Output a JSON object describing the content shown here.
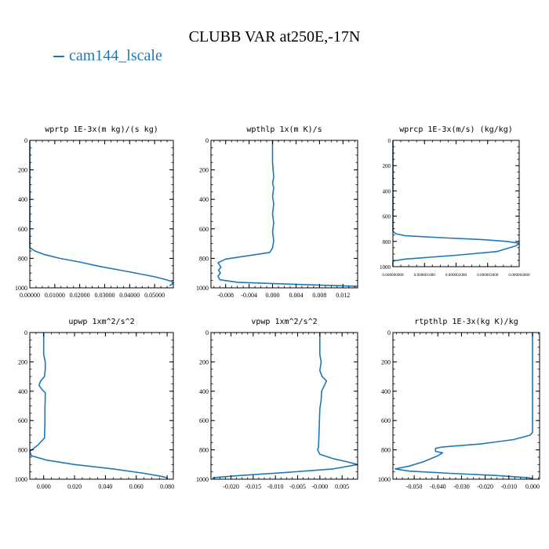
{
  "figure": {
    "title": "CLUBB VAR at250E,-17N",
    "legend_label": "cam144_lscale",
    "series_color": "#1f77b4"
  },
  "chart_data": [
    {
      "type": "line",
      "title": "wprtp  1E-3x(m kg)/(s kg)",
      "xlim": [
        0.0,
        0.0575
      ],
      "ylim": [
        1000,
        0
      ],
      "y_inverted": true,
      "xticks": [
        0.0,
        0.01,
        0.02,
        0.03,
        0.04,
        0.05
      ],
      "xtick_labels": [
        "0.00000",
        "0.01000",
        "0.02000",
        "0.03000",
        "0.04000",
        "0.05000"
      ],
      "yticks": [
        0,
        200,
        400,
        600,
        800,
        1000
      ],
      "ytick_labels": [
        "0",
        "200",
        "400",
        "600",
        "800",
        "1000"
      ],
      "series": [
        {
          "x": [
            0,
            0,
            0.002,
            0.006,
            0.012,
            0.02,
            0.028,
            0.036,
            0.044,
            0.05,
            0.054,
            0.0565,
            0.0575,
            0.057,
            0.056
          ],
          "y": [
            0,
            727,
            750,
            775,
            800,
            825,
            855,
            880,
            905,
            925,
            942,
            955,
            965,
            975,
            985
          ]
        }
      ]
    },
    {
      "type": "line",
      "title": "wpthlp  1x(m K)/s",
      "xlim": [
        -0.0105,
        0.0145
      ],
      "ylim": [
        1000,
        0
      ],
      "y_inverted": true,
      "xticks": [
        -0.008,
        -0.004,
        0.0,
        0.004,
        0.008,
        0.012
      ],
      "xtick_labels": [
        "-0.008",
        "-0.004",
        "0.000",
        "0.004",
        "0.008",
        "0.012"
      ],
      "yticks": [
        0,
        200,
        400,
        600,
        800,
        1000
      ],
      "ytick_labels": [
        "0",
        "200",
        "400",
        "600",
        "800",
        "1000"
      ],
      "series": [
        {
          "x": [
            0.0,
            0.0,
            0.0002,
            0.0,
            0.0002,
            0.0,
            0.0002,
            0.0,
            0.0002,
            0.0,
            0.0002,
            0.0,
            -0.0005,
            -0.008,
            -0.0093,
            -0.0088,
            -0.0092,
            -0.0089,
            -0.0093,
            -0.009,
            -0.006,
            0.003,
            0.0145
          ],
          "y": [
            0,
            150,
            250,
            290,
            320,
            380,
            430,
            500,
            560,
            620,
            680,
            730,
            760,
            805,
            830,
            860,
            880,
            900,
            920,
            945,
            962,
            975,
            990
          ]
        }
      ]
    },
    {
      "type": "line",
      "title": "wprcp  1E-3x(m/s) (kg/kg)",
      "xlim": [
        0.0,
        4e-06
      ],
      "ylim": [
        1000,
        0
      ],
      "y_inverted": true,
      "xticks": [
        0.0,
        1e-06,
        2e-06,
        3e-06,
        4e-06
      ],
      "xtick_labels": [
        "0.000000000",
        "0.000001000",
        "0.000002000",
        "0.000003000",
        "0.000004000"
      ],
      "yticks": [
        0,
        200,
        400,
        600,
        800,
        1000
      ],
      "ytick_labels": [
        "0",
        "200",
        "400",
        "600",
        "800",
        "1000"
      ],
      "series": [
        {
          "x": [
            0,
            0,
            1e-07,
            4e-07,
            1.5e-06,
            2.8e-06,
            3.6e-06,
            4e-06,
            3.9e-06,
            3.3e-06,
            2e-06,
            4e-07,
            0,
            0
          ],
          "y": [
            0,
            720,
            740,
            755,
            770,
            785,
            800,
            815,
            835,
            880,
            910,
            940,
            955,
            1000
          ]
        }
      ]
    },
    {
      "type": "line",
      "title": "upwp  1xm^2/s^2",
      "xlim": [
        -0.009,
        0.084
      ],
      "ylim": [
        1000,
        0
      ],
      "y_inverted": true,
      "xticks": [
        0.0,
        0.02,
        0.04,
        0.06,
        0.08
      ],
      "xtick_labels": [
        "0.000",
        "0.020",
        "0.040",
        "0.060",
        "0.080"
      ],
      "yticks": [
        0,
        200,
        400,
        600,
        800,
        1000
      ],
      "ytick_labels": [
        "0",
        "200",
        "400",
        "600",
        "800",
        "1000"
      ],
      "series": [
        {
          "x": [
            0.0,
            0.0,
            0.001,
            0.001,
            0.0005,
            -0.002,
            -0.003,
            -0.001,
            0.001,
            0.001,
            0.0008,
            0.0008,
            0.0005,
            -0.004,
            -0.009,
            -0.008,
            0.002,
            0.02,
            0.045,
            0.065,
            0.076,
            0.08,
            0.08
          ],
          "y": [
            0,
            150,
            200,
            250,
            300,
            330,
            360,
            390,
            410,
            450,
            520,
            600,
            720,
            770,
            810,
            840,
            870,
            900,
            930,
            960,
            980,
            990,
            1000
          ]
        }
      ]
    },
    {
      "type": "line",
      "title": "vpwp  1xm^2/s^2",
      "xlim": [
        -0.0245,
        0.0085
      ],
      "ylim": [
        1000,
        0
      ],
      "y_inverted": true,
      "xticks": [
        -0.02,
        -0.015,
        -0.01,
        -0.005,
        0.0,
        0.005
      ],
      "xtick_labels": [
        "-0.020",
        "-0.015",
        "-0.010",
        "-0.005",
        "-0.000",
        "0.005"
      ],
      "yticks": [
        0,
        200,
        400,
        600,
        800,
        1000
      ],
      "ytick_labels": [
        "0",
        "200",
        "400",
        "600",
        "800",
        "1000"
      ],
      "series": [
        {
          "x": [
            0.0,
            0.0,
            0.0003,
            0.0,
            0.0005,
            0.0015,
            0.0004,
            0.0003,
            0.0,
            -0.0001,
            -0.0002,
            -0.0003,
            -0.0005,
            0.0,
            0.003,
            0.006,
            0.0085,
            0.003,
            -0.008,
            -0.018,
            -0.024,
            -0.024
          ],
          "y": [
            0,
            150,
            200,
            260,
            300,
            330,
            400,
            460,
            520,
            600,
            700,
            780,
            800,
            830,
            860,
            880,
            900,
            930,
            955,
            975,
            990,
            1000
          ]
        }
      ]
    },
    {
      "type": "line",
      "title": "rtpthlp  1E-3x(kg K)/kg",
      "xlim": [
        -0.059,
        0.003
      ],
      "ylim": [
        1000,
        0
      ],
      "y_inverted": true,
      "xticks": [
        -0.05,
        -0.04,
        -0.03,
        -0.02,
        -0.01,
        0.0
      ],
      "xtick_labels": [
        "-0.050",
        "-0.040",
        "-0.030",
        "-0.020",
        "-0.010",
        "0.000"
      ],
      "yticks": [
        0,
        200,
        400,
        600,
        800,
        1000
      ],
      "ytick_labels": [
        "0",
        "200",
        "400",
        "600",
        "800",
        "1000"
      ],
      "series": [
        {
          "x": [
            0.0,
            0.0,
            -0.001,
            -0.008,
            -0.022,
            -0.038,
            -0.041,
            -0.041,
            -0.038,
            -0.04,
            -0.046,
            -0.052,
            -0.058,
            -0.052,
            -0.035,
            -0.015,
            -0.002,
            0.0,
            0.0
          ],
          "y": [
            0,
            680,
            700,
            730,
            760,
            780,
            790,
            810,
            820,
            840,
            880,
            910,
            930,
            945,
            960,
            975,
            990,
            995,
            1000
          ]
        }
      ]
    }
  ]
}
